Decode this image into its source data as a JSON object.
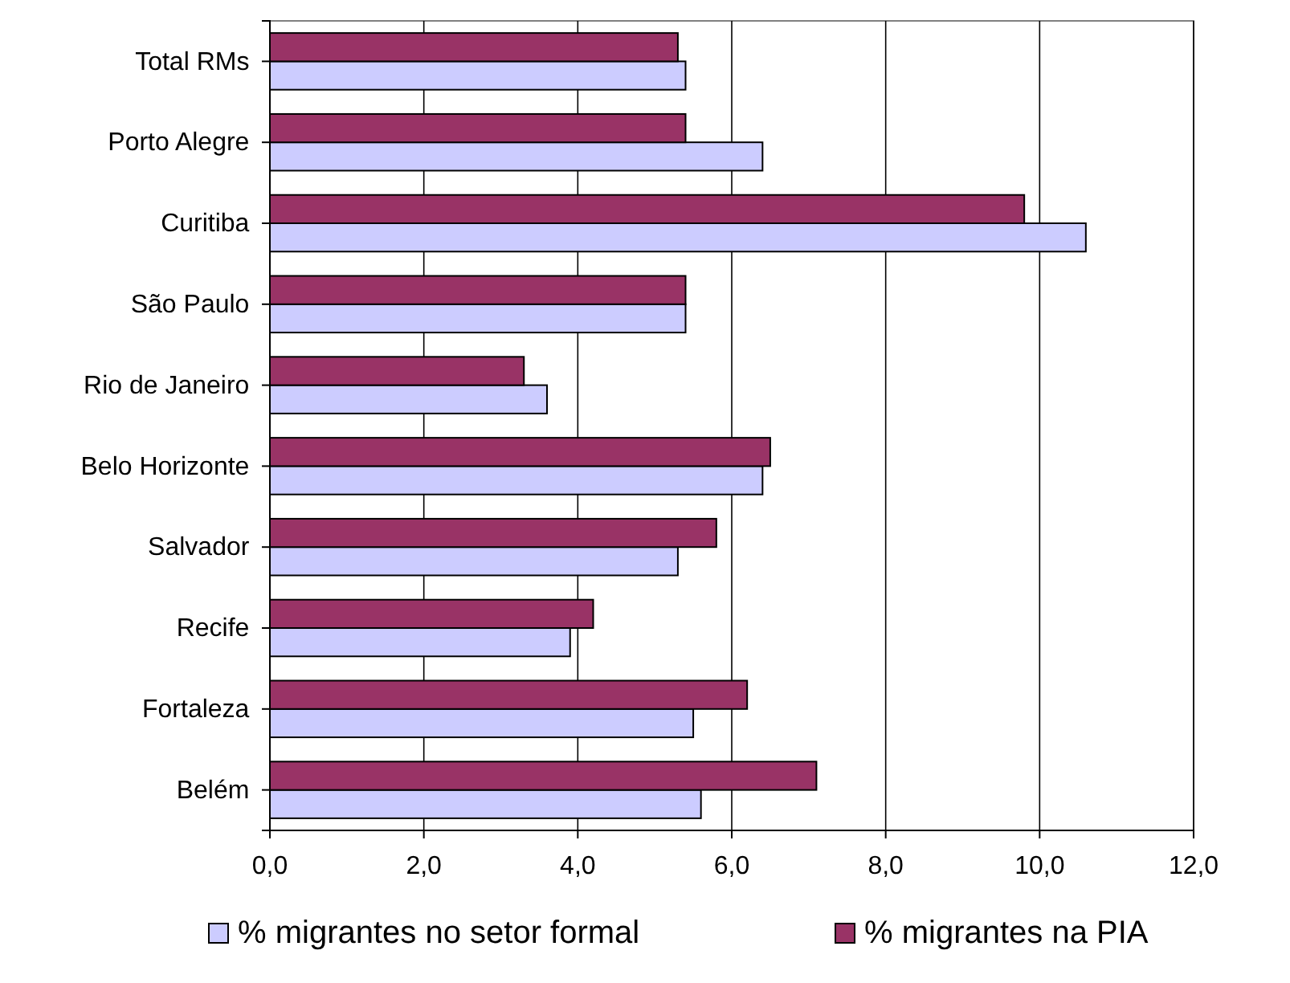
{
  "chart_data": {
    "type": "bar",
    "orientation": "horizontal",
    "categories": [
      "Total RMs",
      "Porto Alegre",
      "Curitiba",
      "São Paulo",
      "Rio de Janeiro",
      "Belo Horizonte",
      "Salvador",
      "Recife",
      "Fortaleza",
      "Belém"
    ],
    "series": [
      {
        "name": "% migrantes no setor formal",
        "color": "#ccccff",
        "values": [
          5.4,
          6.4,
          10.6,
          5.4,
          3.6,
          6.4,
          5.3,
          3.9,
          5.5,
          5.6
        ]
      },
      {
        "name": "% migrantes na PIA",
        "color": "#993366",
        "values": [
          5.3,
          5.4,
          9.8,
          5.4,
          3.3,
          6.5,
          5.8,
          4.2,
          6.2,
          7.1
        ]
      }
    ],
    "xlim": [
      0,
      12
    ],
    "xticks": [
      {
        "value": 0,
        "label": "0,0"
      },
      {
        "value": 2,
        "label": "2,0"
      },
      {
        "value": 4,
        "label": "4,0"
      },
      {
        "value": 6,
        "label": "6,0"
      },
      {
        "value": 8,
        "label": "8,0"
      },
      {
        "value": 10,
        "label": "10,0"
      },
      {
        "value": 12,
        "label": "12,0"
      }
    ],
    "grid": "x",
    "legend": "bottom"
  }
}
